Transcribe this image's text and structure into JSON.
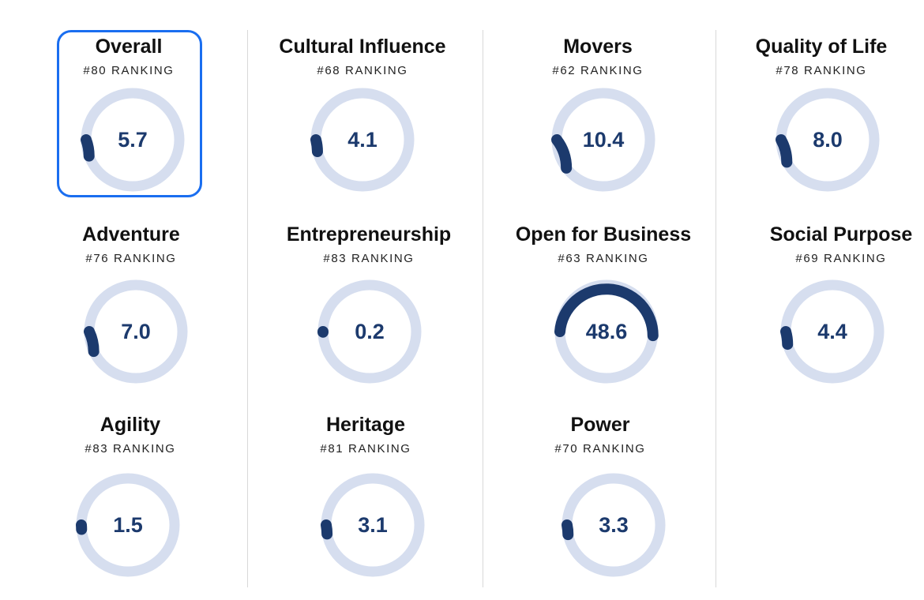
{
  "colors": {
    "ring": "#d6deef",
    "arc": "#1c3a6d",
    "value_text": "#1c3a6d",
    "selected_border": "#1a6ef0"
  },
  "selected_index": 0,
  "chart_data": {
    "type": "radial-gauge",
    "max_value": 100,
    "items": [
      {
        "title": "Overall",
        "rank": "#80 RANKING",
        "value": 5.7,
        "label": "5.7"
      },
      {
        "title": "Cultural Influence",
        "rank": "#68 RANKING",
        "value": 4.1,
        "label": "4.1"
      },
      {
        "title": "Movers",
        "rank": "#62 RANKING",
        "value": 10.4,
        "label": "10.4"
      },
      {
        "title": "Quality of Life",
        "rank": "#78 RANKING",
        "value": 8.0,
        "label": "8.0"
      },
      {
        "title": "Adventure",
        "rank": "#76 RANKING",
        "value": 7.0,
        "label": "7.0"
      },
      {
        "title": "Entrepreneurship",
        "rank": "#83 RANKING",
        "value": 0.2,
        "label": "0.2"
      },
      {
        "title": "Open for Business",
        "rank": "#63 RANKING",
        "value": 48.6,
        "label": "48.6"
      },
      {
        "title": "Social Purpose",
        "rank": "#69 RANKING",
        "value": 4.4,
        "label": "4.4"
      },
      {
        "title": "Agility",
        "rank": "#83 RANKING",
        "value": 1.5,
        "label": "1.5"
      },
      {
        "title": "Heritage",
        "rank": "#81 RANKING",
        "value": 3.1,
        "label": "3.1"
      },
      {
        "title": "Power",
        "rank": "#70 RANKING",
        "value": 3.3,
        "label": "3.3"
      }
    ]
  }
}
